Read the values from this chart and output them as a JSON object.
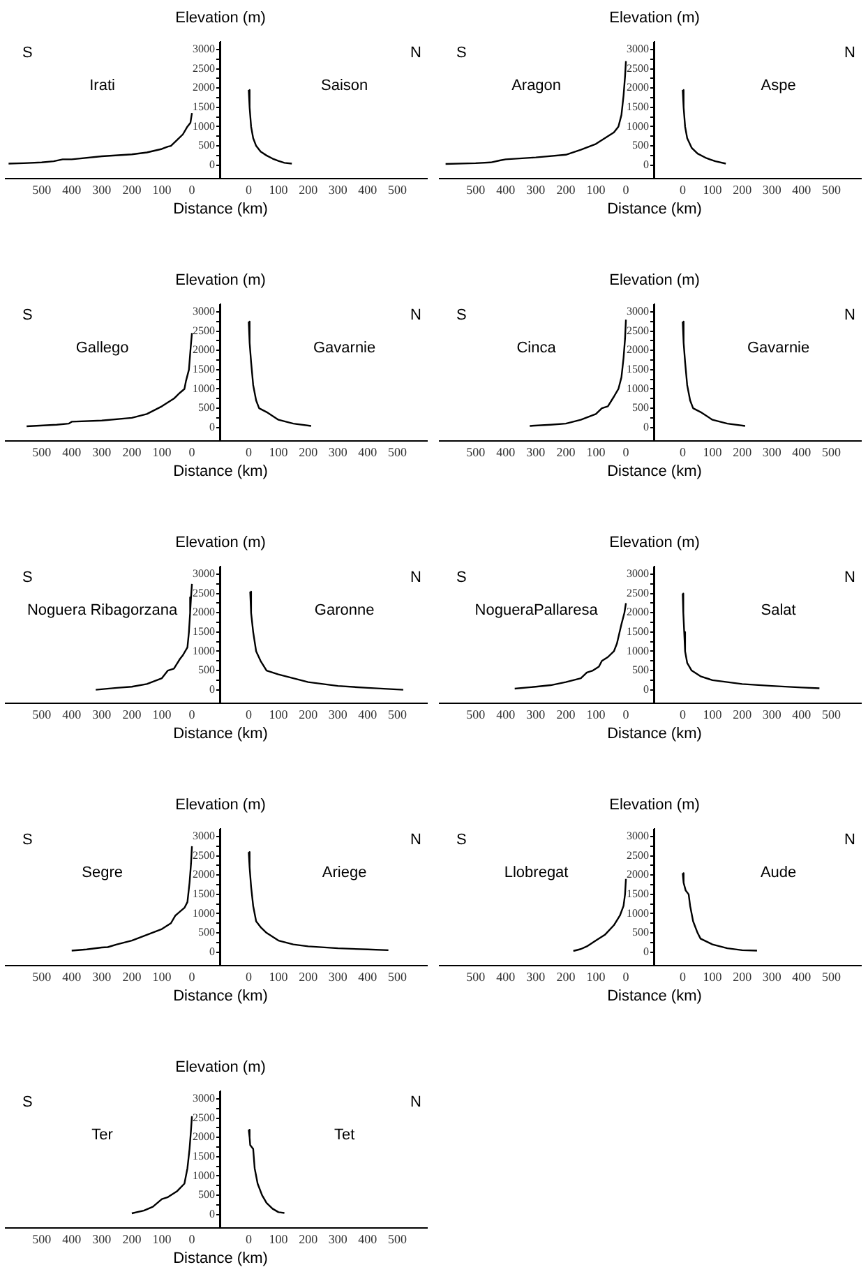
{
  "chart_data": [
    {
      "type": "line",
      "series": [
        {
          "name": "Irati",
          "color": "#000000",
          "x": [
            0,
            5,
            15,
            30,
            50,
            70,
            80,
            100,
            150,
            200,
            300,
            400,
            430,
            460,
            500,
            560,
            610
          ],
          "values": [
            1350,
            1100,
            1000,
            800,
            650,
            500,
            480,
            420,
            330,
            280,
            230,
            150,
            150,
            100,
            70,
            50,
            40
          ]
        }
      ],
      "xlim": [
        620,
        -95
      ],
      "xticks": [
        500,
        400,
        300,
        200,
        100,
        0
      ],
      "ylim": [
        -350,
        3200
      ],
      "tick_labels": "x",
      "annotations": [
        "S"
      ]
    },
    {
      "type": "line",
      "ylabel": "Elevation (m)",
      "xlabel": "Distance (km)",
      "series": [
        {
          "name": "Saison",
          "color": "#000000",
          "x": [
            0,
            3,
            8,
            15,
            25,
            40,
            60,
            80,
            100,
            120,
            145
          ],
          "values": [
            1950,
            1500,
            1000,
            700,
            500,
            350,
            250,
            170,
            110,
            60,
            40
          ]
        }
      ],
      "xlim": [
        -95,
        600
      ],
      "xticks": [
        0,
        100,
        200,
        300,
        400,
        500
      ],
      "ylim": [
        -350,
        3200
      ],
      "yticks": [
        0,
        {
          "value": 250,
          "label": null
        },
        500,
        {
          "value": 750,
          "label": null
        },
        1000,
        {
          "value": 1250,
          "label": null
        },
        1500,
        {
          "value": 1750,
          "label": null
        },
        2000,
        {
          "value": 2250,
          "label": null
        },
        2500,
        {
          "value": 2750,
          "label": null
        },
        3000
      ],
      "annotations": [
        "N"
      ]
    },
    {
      "type": "line",
      "series": [
        {
          "name": "Aragon",
          "color": "#000000",
          "x": [
            0,
            3,
            8,
            15,
            25,
            40,
            60,
            100,
            150,
            200,
            300,
            400,
            420,
            450,
            500,
            600
          ],
          "values": [
            2700,
            2300,
            1800,
            1300,
            1000,
            850,
            750,
            550,
            400,
            270,
            200,
            150,
            120,
            70,
            50,
            30
          ]
        }
      ],
      "xlim": [
        620,
        -95
      ],
      "xticks": [
        500,
        400,
        300,
        200,
        100,
        0
      ],
      "ylim": [
        -350,
        3200
      ],
      "tick_labels": "x",
      "annotations": [
        "S"
      ]
    },
    {
      "type": "line",
      "ylabel": "Elevation (m)",
      "xlabel": "Distance (km)",
      "series": [
        {
          "name": "Aspe",
          "color": "#000000",
          "x": [
            0,
            3,
            8,
            15,
            30,
            50,
            80,
            110,
            145
          ],
          "values": [
            1950,
            1500,
            1000,
            700,
            450,
            300,
            180,
            100,
            40
          ]
        }
      ],
      "xlim": [
        -95,
        600
      ],
      "xticks": [
        0,
        100,
        200,
        300,
        400,
        500
      ],
      "ylim": [
        -350,
        3200
      ],
      "yticks": [
        0,
        {
          "value": 250,
          "label": null
        },
        500,
        {
          "value": 750,
          "label": null
        },
        1000,
        {
          "value": 1250,
          "label": null
        },
        1500,
        {
          "value": 1750,
          "label": null
        },
        2000,
        {
          "value": 2250,
          "label": null
        },
        2500,
        {
          "value": 2750,
          "label": null
        },
        3000
      ],
      "annotations": [
        "N"
      ]
    },
    {
      "type": "line",
      "series": [
        {
          "name": "Gallego",
          "color": "#000000",
          "x": [
            0,
            5,
            10,
            20,
            25,
            40,
            60,
            100,
            150,
            200,
            300,
            400,
            410,
            450,
            550
          ],
          "values": [
            2450,
            2000,
            1500,
            1200,
            1000,
            900,
            750,
            550,
            350,
            250,
            180,
            150,
            100,
            70,
            30
          ]
        }
      ],
      "xlim": [
        620,
        -95
      ],
      "xticks": [
        500,
        400,
        300,
        200,
        100,
        0
      ],
      "ylim": [
        -350,
        3200
      ],
      "tick_labels": "x",
      "annotations": [
        "S"
      ]
    },
    {
      "type": "line",
      "ylabel": "Elevation (m)",
      "xlabel": "Distance (km)",
      "series": [
        {
          "name": "Gavarnie",
          "color": "#000000",
          "x": [
            0,
            3,
            8,
            15,
            25,
            35,
            60,
            100,
            150,
            210
          ],
          "values": [
            2750,
            2200,
            1700,
            1100,
            700,
            500,
            400,
            200,
            100,
            40
          ]
        }
      ],
      "xlim": [
        -95,
        600
      ],
      "xticks": [
        0,
        100,
        200,
        300,
        400,
        500
      ],
      "ylim": [
        -350,
        3200
      ],
      "yticks": [
        0,
        {
          "value": 250,
          "label": null
        },
        500,
        {
          "value": 750,
          "label": null
        },
        1000,
        {
          "value": 1250,
          "label": null
        },
        1500,
        {
          "value": 1750,
          "label": null
        },
        2000,
        {
          "value": 2250,
          "label": null
        },
        2500,
        {
          "value": 2750,
          "label": null
        },
        3000
      ],
      "annotations": [
        "N"
      ]
    },
    {
      "type": "line",
      "series": [
        {
          "name": "Cinca",
          "color": "#000000",
          "x": [
            0,
            3,
            8,
            15,
            25,
            40,
            60,
            80,
            100,
            150,
            200,
            250,
            320
          ],
          "values": [
            2800,
            2300,
            1800,
            1300,
            1000,
            800,
            550,
            500,
            350,
            200,
            100,
            70,
            40
          ]
        }
      ],
      "xlim": [
        620,
        -95
      ],
      "xticks": [
        500,
        400,
        300,
        200,
        100,
        0
      ],
      "ylim": [
        -350,
        3200
      ],
      "tick_labels": "x",
      "annotations": [
        "S"
      ]
    },
    {
      "type": "line",
      "ylabel": "Elevation (m)",
      "xlabel": "Distance (km)",
      "series": [
        {
          "name": "Gavarnie",
          "color": "#000000",
          "x": [
            0,
            3,
            8,
            15,
            25,
            35,
            60,
            100,
            150,
            210
          ],
          "values": [
            2750,
            2200,
            1700,
            1100,
            700,
            500,
            400,
            200,
            100,
            40
          ]
        }
      ],
      "xlim": [
        -95,
        600
      ],
      "xticks": [
        0,
        100,
        200,
        300,
        400,
        500
      ],
      "ylim": [
        -350,
        3200
      ],
      "yticks": [
        0,
        {
          "value": 250,
          "label": null
        },
        500,
        {
          "value": 750,
          "label": null
        },
        1000,
        {
          "value": 1250,
          "label": null
        },
        1500,
        {
          "value": 1750,
          "label": null
        },
        2000,
        {
          "value": 2250,
          "label": null
        },
        2500,
        {
          "value": 2750,
          "label": null
        },
        3000
      ],
      "annotations": [
        "N"
      ]
    },
    {
      "type": "line",
      "series": [
        {
          "name": "Noguera Ribagorzana",
          "color": "#000000",
          "x": [
            0,
            3,
            6,
            10,
            15,
            30,
            40,
            60,
            80,
            90,
            100,
            150,
            200,
            250,
            320
          ],
          "values": [
            2750,
            2400,
            2000,
            1500,
            1100,
            900,
            800,
            550,
            500,
            400,
            300,
            150,
            80,
            50,
            0
          ]
        }
      ],
      "xlim": [
        620,
        -95
      ],
      "xticks": [
        500,
        400,
        300,
        200,
        100,
        0
      ],
      "ylim": [
        -350,
        3200
      ],
      "tick_labels": "x",
      "annotations": [
        "S"
      ]
    },
    {
      "type": "line",
      "ylabel": "Elevation (m)",
      "xlabel": "Distance (km)",
      "series": [
        {
          "name": "Garonne",
          "color": "#000000",
          "x": [
            5,
            8,
            15,
            25,
            40,
            60,
            100,
            150,
            200,
            300,
            400,
            520
          ],
          "values": [
            2550,
            2000,
            1500,
            1000,
            750,
            500,
            400,
            300,
            200,
            100,
            50,
            0
          ]
        }
      ],
      "xlim": [
        -95,
        600
      ],
      "xticks": [
        0,
        100,
        200,
        300,
        400,
        500
      ],
      "ylim": [
        -350,
        3200
      ],
      "yticks": [
        0,
        {
          "value": 250,
          "label": null
        },
        500,
        {
          "value": 750,
          "label": null
        },
        1000,
        {
          "value": 1250,
          "label": null
        },
        1500,
        {
          "value": 1750,
          "label": null
        },
        2000,
        {
          "value": 2250,
          "label": null
        },
        2500,
        {
          "value": 2750,
          "label": null
        },
        3000
      ],
      "annotations": [
        "N"
      ]
    },
    {
      "type": "line",
      "series": [
        {
          "name": "NogueraPallaresa",
          "color": "#000000",
          "x": [
            0,
            5,
            15,
            30,
            40,
            60,
            80,
            90,
            110,
            130,
            150,
            200,
            250,
            300,
            370
          ],
          "values": [
            2250,
            2000,
            1700,
            1200,
            1000,
            850,
            750,
            600,
            500,
            450,
            300,
            200,
            120,
            80,
            30
          ]
        }
      ],
      "xlim": [
        620,
        -95
      ],
      "xticks": [
        500,
        400,
        300,
        200,
        100,
        0
      ],
      "ylim": [
        -350,
        3200
      ],
      "tick_labels": "x",
      "annotations": [
        "S"
      ]
    },
    {
      "type": "line",
      "ylabel": "Elevation (m)",
      "xlabel": "Distance (km)",
      "series": [
        {
          "name": "Salat",
          "color": "#000000",
          "x": [
            0,
            2,
            5,
            8,
            15,
            30,
            60,
            100,
            200,
            300,
            400,
            460
          ],
          "values": [
            2500,
            2000,
            1500,
            1000,
            700,
            500,
            350,
            250,
            150,
            100,
            60,
            40
          ]
        }
      ],
      "xlim": [
        -95,
        600
      ],
      "xticks": [
        0,
        100,
        200,
        300,
        400,
        500
      ],
      "ylim": [
        -350,
        3200
      ],
      "yticks": [
        0,
        {
          "value": 250,
          "label": null
        },
        500,
        {
          "value": 750,
          "label": null
        },
        1000,
        {
          "value": 1250,
          "label": null
        },
        1500,
        {
          "value": 1750,
          "label": null
        },
        2000,
        {
          "value": 2250,
          "label": null
        },
        2500,
        {
          "value": 2750,
          "label": null
        },
        3000
      ],
      "annotations": [
        "N"
      ]
    },
    {
      "type": "line",
      "series": [
        {
          "name": "Segre",
          "color": "#000000",
          "x": [
            0,
            3,
            8,
            15,
            25,
            40,
            55,
            70,
            100,
            150,
            200,
            250,
            280,
            300,
            350,
            400
          ],
          "values": [
            2750,
            2300,
            1800,
            1300,
            1150,
            1050,
            950,
            750,
            600,
            450,
            300,
            200,
            130,
            120,
            70,
            40
          ]
        }
      ],
      "xlim": [
        620,
        -95
      ],
      "xticks": [
        500,
        400,
        300,
        200,
        100,
        0
      ],
      "ylim": [
        -350,
        3200
      ],
      "tick_labels": "x",
      "annotations": [
        "S"
      ]
    },
    {
      "type": "line",
      "ylabel": "Elevation (m)",
      "xlabel": "Distance (km)",
      "series": [
        {
          "name": "Ariege",
          "color": "#000000",
          "x": [
            0,
            3,
            8,
            15,
            25,
            40,
            60,
            100,
            150,
            200,
            300,
            400,
            470
          ],
          "values": [
            2600,
            2200,
            1700,
            1200,
            800,
            650,
            500,
            300,
            200,
            150,
            100,
            70,
            50
          ]
        }
      ],
      "xlim": [
        -95,
        600
      ],
      "xticks": [
        0,
        100,
        200,
        300,
        400,
        500
      ],
      "ylim": [
        -350,
        3200
      ],
      "yticks": [
        0,
        {
          "value": 250,
          "label": null
        },
        500,
        {
          "value": 750,
          "label": null
        },
        1000,
        {
          "value": 1250,
          "label": null
        },
        1500,
        {
          "value": 1750,
          "label": null
        },
        2000,
        {
          "value": 2250,
          "label": null
        },
        2500,
        {
          "value": 2750,
          "label": null
        },
        3000
      ],
      "annotations": [
        "N"
      ]
    },
    {
      "type": "line",
      "series": [
        {
          "name": "Llobregat",
          "color": "#000000",
          "x": [
            0,
            3,
            8,
            20,
            40,
            70,
            100,
            130,
            150,
            175
          ],
          "values": [
            1900,
            1500,
            1200,
            950,
            700,
            450,
            300,
            150,
            80,
            30
          ]
        }
      ],
      "xlim": [
        620,
        -95
      ],
      "xticks": [
        500,
        400,
        300,
        200,
        100,
        0
      ],
      "ylim": [
        -350,
        3200
      ],
      "tick_labels": "x",
      "annotations": [
        "S"
      ]
    },
    {
      "type": "line",
      "ylabel": "Elevation (m)",
      "xlabel": "Distance (km)",
      "series": [
        {
          "name": "Aude",
          "color": "#000000",
          "x": [
            0,
            3,
            10,
            20,
            25,
            35,
            50,
            60,
            100,
            150,
            200,
            250
          ],
          "values": [
            2050,
            1800,
            1600,
            1500,
            1200,
            800,
            500,
            350,
            200,
            100,
            50,
            40
          ]
        }
      ],
      "xlim": [
        -95,
        600
      ],
      "xticks": [
        0,
        100,
        200,
        300,
        400,
        500
      ],
      "ylim": [
        -350,
        3200
      ],
      "yticks": [
        0,
        {
          "value": 250,
          "label": null
        },
        500,
        {
          "value": 750,
          "label": null
        },
        1000,
        {
          "value": 1250,
          "label": null
        },
        1500,
        {
          "value": 1750,
          "label": null
        },
        2000,
        {
          "value": 2250,
          "label": null
        },
        2500,
        {
          "value": 2750,
          "label": null
        },
        3000
      ],
      "annotations": [
        "N"
      ]
    },
    {
      "type": "line",
      "series": [
        {
          "name": "Ter",
          "color": "#000000",
          "x": [
            0,
            3,
            8,
            15,
            25,
            50,
            80,
            100,
            115,
            130,
            160,
            200
          ],
          "values": [
            2550,
            2200,
            1700,
            1200,
            800,
            600,
            450,
            400,
            300,
            200,
            100,
            30
          ]
        }
      ],
      "xlim": [
        620,
        -95
      ],
      "xticks": [
        500,
        400,
        300,
        200,
        100,
        0
      ],
      "ylim": [
        -350,
        3200
      ],
      "tick_labels": "x",
      "annotations": [
        "S"
      ]
    },
    {
      "type": "line",
      "ylabel": "Elevation (m)",
      "xlabel": "Distance (km)",
      "series": [
        {
          "name": "Tet",
          "color": "#000000",
          "x": [
            0,
            3,
            5,
            15,
            20,
            30,
            45,
            60,
            80,
            100,
            120
          ],
          "values": [
            2200,
            2000,
            1800,
            1700,
            1200,
            800,
            500,
            300,
            150,
            60,
            40
          ]
        }
      ],
      "xlim": [
        -95,
        600
      ],
      "xticks": [
        0,
        100,
        200,
        300,
        400,
        500
      ],
      "ylim": [
        -350,
        3200
      ],
      "yticks": [
        0,
        {
          "value": 250,
          "label": null
        },
        500,
        {
          "value": 750,
          "label": null
        },
        1000,
        {
          "value": 1250,
          "label": null
        },
        1500,
        {
          "value": 1750,
          "label": null
        },
        2000,
        {
          "value": 2250,
          "label": null
        },
        2500,
        {
          "value": 2750,
          "label": null
        },
        3000
      ],
      "annotations": [
        "N"
      ]
    }
  ]
}
